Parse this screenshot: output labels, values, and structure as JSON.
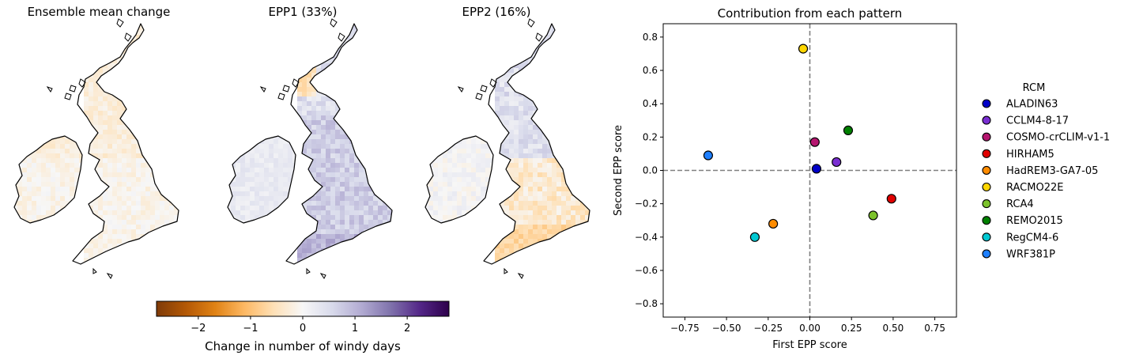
{
  "maps": [
    {
      "title": "Ensemble mean change",
      "pattern": "mean"
    },
    {
      "title": "EPP1 (33%)",
      "pattern": "epp1"
    },
    {
      "title": "EPP2 (16%)",
      "pattern": "epp2"
    }
  ],
  "colorbar": {
    "label": "Change in number of windy days",
    "range": [
      -2.8,
      2.8
    ],
    "ticks": [
      -2,
      -1,
      0,
      1,
      2
    ],
    "tick_labels": [
      "−2",
      "−1",
      "0",
      "1",
      "2"
    ],
    "colormap": [
      "#7f3b08",
      "#b35806",
      "#e08214",
      "#fdb863",
      "#fee0b6",
      "#f7f7f7",
      "#d8daeb",
      "#b2abd2",
      "#8073ac",
      "#542788",
      "#2d004b"
    ]
  },
  "chart_data": {
    "type": "scatter",
    "title": "Contribution from each pattern",
    "xlabel": "First EPP score",
    "ylabel": "Second EPP score",
    "xlim": [
      -0.88,
      0.88
    ],
    "ylim": [
      -0.88,
      0.88
    ],
    "xticks": [
      -0.75,
      -0.5,
      -0.25,
      0.0,
      0.25,
      0.5,
      0.75
    ],
    "xtick_labels": [
      "−0.75",
      "−0.50",
      "−0.25",
      "0.00",
      "0.25",
      "0.50",
      "0.75"
    ],
    "yticks": [
      -0.8,
      -0.6,
      -0.4,
      -0.2,
      0.0,
      0.2,
      0.4,
      0.6,
      0.8
    ],
    "ytick_labels": [
      "−0.8",
      "−0.6",
      "−0.4",
      "−0.2",
      "0.0",
      "0.2",
      "0.4",
      "0.6",
      "0.8"
    ],
    "reference_lines": {
      "x": 0.0,
      "y": 0.0,
      "style": "dashed",
      "color": "#808080"
    },
    "legend_title": "RCM",
    "legend_placement": "right, outside plot",
    "series": [
      {
        "name": "ALADIN63",
        "x": 0.04,
        "y": 0.01,
        "color": "#0000c8"
      },
      {
        "name": "CCLM4-8-17",
        "x": 0.16,
        "y": 0.05,
        "color": "#7a2ed2"
      },
      {
        "name": "COSMO-crCLIM-v1-1",
        "x": 0.03,
        "y": 0.17,
        "color": "#b5166f"
      },
      {
        "name": "HIRHAM5",
        "x": 0.49,
        "y": -0.17,
        "color": "#e00000"
      },
      {
        "name": "HadREM3-GA7-05",
        "x": -0.22,
        "y": -0.32,
        "color": "#ff8c00"
      },
      {
        "name": "RACMO22E",
        "x": -0.04,
        "y": 0.73,
        "color": "#ffd700"
      },
      {
        "name": "RCA4",
        "x": 0.38,
        "y": -0.27,
        "color": "#7cc22c"
      },
      {
        "name": "REMO2015",
        "x": 0.23,
        "y": 0.24,
        "color": "#008000"
      },
      {
        "name": "RegCM4-6",
        "x": -0.33,
        "y": -0.4,
        "color": "#00c8d2"
      },
      {
        "name": "WRF381P",
        "x": -0.61,
        "y": 0.09,
        "color": "#1e7fff"
      }
    ]
  }
}
